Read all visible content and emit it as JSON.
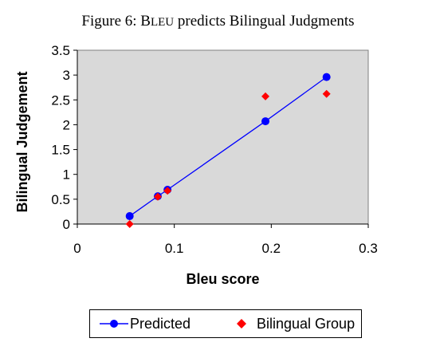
{
  "figure": {
    "title_prefix": "Figure 6: B",
    "title_smallcaps": "LEU",
    "title_suffix": " predicts Bilingual Judgments"
  },
  "colors": {
    "plot_background": "#d9d9d9",
    "predicted": "#0000ff",
    "bilingual_group": "#ff0000"
  },
  "chart_data": {
    "type": "scatter",
    "title": "Figure 6: BLEU predicts Bilingual Judgments",
    "xlabel": "Bleu score",
    "ylabel": "Bilingual Judgement",
    "xlim": [
      0,
      0.3
    ],
    "ylim": [
      0,
      3.5
    ],
    "xticks": [
      0,
      0.1,
      0.2,
      0.3
    ],
    "xtick_labels": [
      "0",
      "0.1",
      "0.2",
      "0.3"
    ],
    "yticks": [
      0,
      0.5,
      1,
      1.5,
      2,
      2.5,
      3,
      3.5
    ],
    "ytick_labels": [
      "0",
      "0.5",
      "1",
      "1.5",
      "2",
      "2.5",
      "3",
      "3.5"
    ],
    "grid": false,
    "legend_position": "bottom",
    "series": [
      {
        "name": "Predicted",
        "style": "line-with-circles",
        "color": "#0000ff",
        "points": [
          {
            "x": 0.054,
            "y": 0.16
          },
          {
            "x": 0.083,
            "y": 0.56
          },
          {
            "x": 0.093,
            "y": 0.69
          },
          {
            "x": 0.194,
            "y": 2.07
          },
          {
            "x": 0.257,
            "y": 2.96
          }
        ]
      },
      {
        "name": "Bilingual Group",
        "style": "diamond-markers",
        "color": "#ff0000",
        "points": [
          {
            "x": 0.054,
            "y": 0.0
          },
          {
            "x": 0.083,
            "y": 0.55
          },
          {
            "x": 0.093,
            "y": 0.67
          },
          {
            "x": 0.194,
            "y": 2.57
          },
          {
            "x": 0.257,
            "y": 2.62
          }
        ]
      }
    ]
  }
}
